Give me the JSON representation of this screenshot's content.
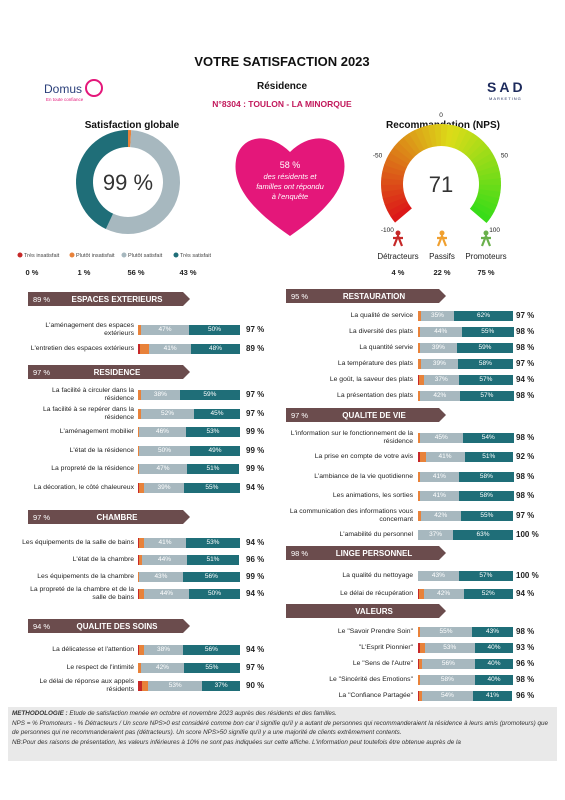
{
  "header": {
    "title": "VOTRE SATISFACTION 2023",
    "subtitle": "Résidence",
    "residence": "N°8304 : TOULON - LA MINORQUE",
    "logo_left": "Domus",
    "logo_left_sub": "En toute confiance",
    "logo_right": "SAD",
    "logo_right_sub": "MARKETING"
  },
  "global": {
    "title": "Satisfaction globale",
    "value": 99,
    "value_label": "99 %",
    "segments": [
      {
        "name": "Très insatisfait",
        "color": "#c62828",
        "value": 0,
        "value_label": "0 %"
      },
      {
        "name": "Plutôt insatisfait",
        "color": "#e8823a",
        "value": 1,
        "value_label": "1 %"
      },
      {
        "name": "Plutôt satisfait",
        "color": "#a7b8bf",
        "value": 56,
        "value_label": "56 %"
      },
      {
        "name": "Très satisfait",
        "color": "#1f6e78",
        "value": 43,
        "value_label": "43 %"
      }
    ]
  },
  "response": {
    "value": 58,
    "value_label": "58 %",
    "text": "des résidents et familles ont répondu à l'enquête"
  },
  "nps": {
    "title": "Recommandation (NPS)",
    "value": 71,
    "ticks": [
      -100,
      -50,
      0,
      50,
      100
    ],
    "groups": [
      {
        "name": "Détracteurs",
        "color": "#c62828",
        "value": 4,
        "value_label": "4 %"
      },
      {
        "name": "Passifs",
        "color": "#f0a030",
        "value": 22,
        "value_label": "22 %"
      },
      {
        "name": "Promoteurs",
        "color": "#6ab04c",
        "value": 75,
        "value_label": "75 %"
      }
    ]
  },
  "left_sections": [
    {
      "title": "ESPACES EXTERIEURS",
      "score": 89,
      "score_label": "89 %",
      "items": [
        {
          "label": "L'aménagement des espaces extérieurs",
          "values": [
            0,
            3,
            47,
            50
          ],
          "value_labels": [
            null,
            null,
            "47%",
            "50%"
          ],
          "total": 97,
          "total_label": "97 %"
        },
        {
          "label": "L'entretien des espaces extérieurs",
          "values": [
            2,
            9,
            41,
            48
          ],
          "value_labels": [
            null,
            null,
            "41%",
            "48%"
          ],
          "total": 89,
          "total_label": "89 %"
        }
      ]
    },
    {
      "title": "RESIDENCE",
      "score": 97,
      "score_label": "97 %",
      "items": [
        {
          "label": "La facilité à circuler dans la résidence",
          "values": [
            0,
            3,
            38,
            59
          ],
          "value_labels": [
            null,
            null,
            "38%",
            "59%"
          ],
          "total": 97,
          "total_label": "97 %"
        },
        {
          "label": "La facilité à se repérer dans la résidence",
          "values": [
            0,
            3,
            52,
            45
          ],
          "value_labels": [
            null,
            null,
            "52%",
            "45%"
          ],
          "total": 97,
          "total_label": "97 %"
        },
        {
          "label": "L'aménagement mobilier",
          "values": [
            0,
            1,
            46,
            53
          ],
          "value_labels": [
            null,
            null,
            "46%",
            "53%"
          ],
          "total": 99,
          "total_label": "99 %"
        },
        {
          "label": "L'état de la résidence",
          "values": [
            0,
            1,
            50,
            49
          ],
          "value_labels": [
            null,
            null,
            "50%",
            "49%"
          ],
          "total": 99,
          "total_label": "99 %"
        },
        {
          "label": "La propreté de la résidence",
          "values": [
            0,
            1,
            47,
            51
          ],
          "value_labels": [
            null,
            null,
            "47%",
            "51%"
          ],
          "total": 99,
          "total_label": "99 %"
        },
        {
          "label": "La décoration, le côté chaleureux",
          "values": [
            1,
            5,
            39,
            55
          ],
          "value_labels": [
            null,
            null,
            "39%",
            "55%"
          ],
          "total": 94,
          "total_label": "94 %"
        }
      ]
    },
    {
      "title": "CHAMBRE",
      "score": 97,
      "score_label": "97 %",
      "items": [
        {
          "label": "Les équipements de la salle de bains",
          "values": [
            1,
            5,
            41,
            53
          ],
          "value_labels": [
            null,
            null,
            "41%",
            "53%"
          ],
          "total": 94,
          "total_label": "94 %"
        },
        {
          "label": "L'état de la chambre",
          "values": [
            1,
            3,
            44,
            51
          ],
          "value_labels": [
            null,
            null,
            "44%",
            "51%"
          ],
          "total": 96,
          "total_label": "96 %"
        },
        {
          "label": "Les équipements de la chambre",
          "values": [
            0,
            1,
            43,
            56
          ],
          "value_labels": [
            null,
            null,
            "43%",
            "56%"
          ],
          "total": 99,
          "total_label": "99 %"
        },
        {
          "label": "La propreté de la chambre et de la salle de bains",
          "values": [
            1,
            5,
            44,
            50
          ],
          "value_labels": [
            null,
            null,
            "44%",
            "50%"
          ],
          "total": 94,
          "total_label": "94 %"
        }
      ]
    },
    {
      "title": "QUALITE DES SOINS",
      "score": 94,
      "score_label": "94 %",
      "items": [
        {
          "label": "La délicatesse et l'attention",
          "values": [
            1,
            5,
            38,
            56
          ],
          "value_labels": [
            null,
            null,
            "38%",
            "56%"
          ],
          "total": 94,
          "total_label": "94 %"
        },
        {
          "label": "Le respect de l'intimité",
          "values": [
            0,
            3,
            42,
            55
          ],
          "value_labels": [
            null,
            null,
            "42%",
            "55%"
          ],
          "total": 97,
          "total_label": "97 %"
        },
        {
          "label": "Le délai de réponse aux appels résidents",
          "values": [
            4,
            6,
            53,
            37
          ],
          "value_labels": [
            null,
            null,
            "53%",
            "37%"
          ],
          "total": 90,
          "total_label": "90 %"
        }
      ]
    }
  ],
  "right_sections": [
    {
      "title": "RESTAURATION",
      "score": 95,
      "score_label": "95 %",
      "items": [
        {
          "label": "La qualité de service",
          "values": [
            0,
            3,
            35,
            62
          ],
          "value_labels": [
            null,
            null,
            "35%",
            "62%"
          ],
          "total": 97,
          "total_label": "97 %"
        },
        {
          "label": "La diversité des plats",
          "values": [
            0,
            2,
            44,
            55
          ],
          "value_labels": [
            null,
            null,
            "44%",
            "55%"
          ],
          "total": 98,
          "total_label": "98 %"
        },
        {
          "label": "La quantité servie",
          "values": [
            0,
            2,
            39,
            59
          ],
          "value_labels": [
            null,
            null,
            "39%",
            "59%"
          ],
          "total": 98,
          "total_label": "98 %"
        },
        {
          "label": "La température des plats",
          "values": [
            0,
            3,
            39,
            58
          ],
          "value_labels": [
            null,
            null,
            "39%",
            "58%"
          ],
          "total": 97,
          "total_label": "97 %"
        },
        {
          "label": "Le goût, la saveur des plats",
          "values": [
            1,
            5,
            37,
            57
          ],
          "value_labels": [
            null,
            null,
            "37%",
            "57%"
          ],
          "total": 94,
          "total_label": "94 %"
        },
        {
          "label": "La présentation des plats",
          "values": [
            0,
            2,
            42,
            57
          ],
          "value_labels": [
            null,
            null,
            "42%",
            "57%"
          ],
          "total": 98,
          "total_label": "98 %"
        }
      ]
    },
    {
      "title": "QUALITE DE VIE",
      "score": 97,
      "score_label": "97 %",
      "items": [
        {
          "label": "L'information sur le fonctionnement de la résidence",
          "values": [
            0,
            2,
            45,
            54
          ],
          "value_labels": [
            null,
            null,
            "45%",
            "54%"
          ],
          "total": 98,
          "total_label": "98 %"
        },
        {
          "label": "La prise en compte de votre avis",
          "values": [
            2,
            6,
            41,
            51
          ],
          "value_labels": [
            null,
            null,
            "41%",
            "51%"
          ],
          "total": 92,
          "total_label": "92 %"
        },
        {
          "label": "L'ambiance de la vie quotidienne",
          "values": [
            0,
            2,
            41,
            58
          ],
          "value_labels": [
            null,
            null,
            "41%",
            "58%"
          ],
          "total": 98,
          "total_label": "98 %"
        },
        {
          "label": "Les animations, les sorties",
          "values": [
            0,
            2,
            41,
            58
          ],
          "value_labels": [
            null,
            null,
            "41%",
            "58%"
          ],
          "total": 98,
          "total_label": "98 %"
        },
        {
          "label": "La communication des informations vous concernant",
          "values": [
            0,
            3,
            42,
            55
          ],
          "value_labels": [
            null,
            null,
            "42%",
            "55%"
          ],
          "total": 97,
          "total_label": "97 %"
        },
        {
          "label": "L'amabilité du personnel",
          "values": [
            0,
            0,
            37,
            63
          ],
          "value_labels": [
            null,
            null,
            "37%",
            "63%"
          ],
          "total": 100,
          "total_label": "100 %"
        }
      ]
    },
    {
      "title": "LINGE PERSONNEL",
      "score": 98,
      "score_label": "98 %",
      "items": [
        {
          "label": "La qualité du nettoyage",
          "values": [
            0,
            0,
            43,
            57
          ],
          "value_labels": [
            null,
            null,
            "43%",
            "57%"
          ],
          "total": 100,
          "total_label": "100 %"
        },
        {
          "label": "Le délai de récupération",
          "values": [
            1,
            5,
            42,
            52
          ],
          "value_labels": [
            null,
            null,
            "42%",
            "52%"
          ],
          "total": 94,
          "total_label": "94 %"
        }
      ]
    },
    {
      "title": "VALEURS",
      "items": [
        {
          "label": "Le \"Savoir Prendre Soin\"",
          "values": [
            0,
            2,
            55,
            43
          ],
          "value_labels": [
            null,
            null,
            "55%",
            "43%"
          ],
          "total": 98,
          "total_label": "98 %"
        },
        {
          "label": "\"L'Esprit Pionnier\"",
          "values": [
            2,
            5,
            53,
            40
          ],
          "value_labels": [
            null,
            null,
            "53%",
            "40%"
          ],
          "total": 93,
          "total_label": "93 %"
        },
        {
          "label": "Le \"Sens de l'Autre\"",
          "values": [
            1,
            3,
            56,
            40
          ],
          "value_labels": [
            null,
            null,
            "56%",
            "40%"
          ],
          "total": 96,
          "total_label": "96 %"
        },
        {
          "label": "Le \"Sincérité des Emotions\"",
          "values": [
            0,
            2,
            58,
            40
          ],
          "value_labels": [
            null,
            null,
            "58%",
            "40%"
          ],
          "total": 98,
          "total_label": "98 %"
        },
        {
          "label": "La \"Confiance Partagée\"",
          "values": [
            1,
            3,
            54,
            41
          ],
          "value_labels": [
            null,
            null,
            "54%",
            "41%"
          ],
          "total": 96,
          "total_label": "96 %"
        }
      ]
    }
  ],
  "footer": {
    "label": "METHODOLOGIE :",
    "lines": [
      "Etude de satisfaction menée en octobre et novembre 2023 auprès des résidents et des familles.",
      "NPS = % Promoteurs - % Détracteurs / Un score NPS>0 est considéré comme bon car il signifie qu'il y a autant de personnes qui recommanderaient la résidence à leurs amis (promoteurs) que de personnes qui ne recommanderaient pas (détracteurs). Un score NPS>50 signifie qu'il y a une majorité de clients extrêmement contents.",
      "NB:Pour des raisons de présentation, les valeurs inférieures à 10% ne sont pas indiquées sur cette affiche. L'information peut toutefois être obtenue auprès de la"
    ]
  }
}
